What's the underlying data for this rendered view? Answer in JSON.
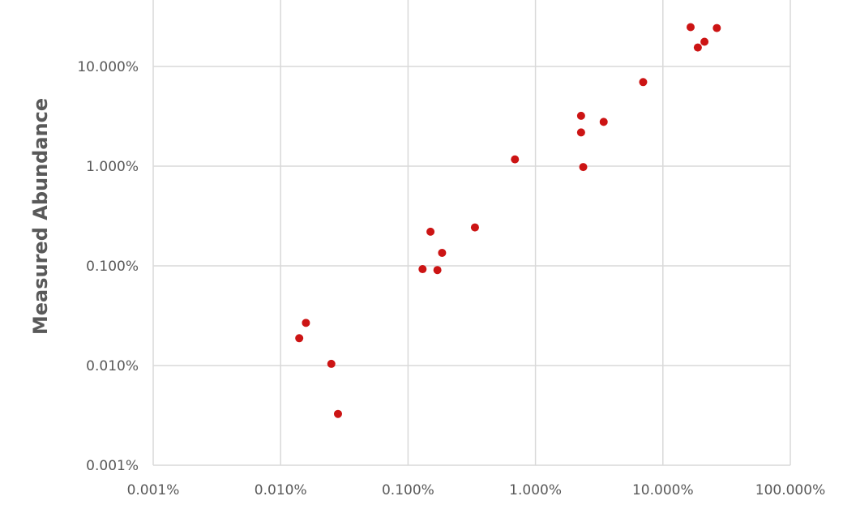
{
  "chart_data": {
    "type": "scatter",
    "title": "",
    "xlabel": "",
    "ylabel": "Measured Abundance",
    "x_scale": "log",
    "y_scale": "log",
    "xlim": [
      1e-05,
      1.0
    ],
    "ylim": [
      1e-05,
      0.3
    ],
    "x_ticks": [
      1e-05,
      0.0001,
      0.001,
      0.01,
      0.1,
      1.0
    ],
    "x_tick_labels": [
      "0.001%",
      "0.010%",
      "0.100%",
      "1.000%",
      "10.000%",
      "100.000%"
    ],
    "y_ticks": [
      1e-05,
      0.0001,
      0.001,
      0.01,
      0.1
    ],
    "y_tick_labels": [
      "0.001%",
      "0.010%",
      "0.100%",
      "1.000%",
      "10.000%"
    ],
    "grid": true,
    "legend": "none",
    "marker_color": "#cc1414",
    "points": [
      {
        "x": 0.00014,
        "y": 0.000188
      },
      {
        "x": 0.000158,
        "y": 0.000268
      },
      {
        "x": 0.00025,
        "y": 0.000104
      },
      {
        "x": 0.000282,
        "y": 3.27e-05
      },
      {
        "x": 0.0013,
        "y": 0.000927
      },
      {
        "x": 0.0015,
        "y": 0.0022
      },
      {
        "x": 0.0017,
        "y": 0.000907
      },
      {
        "x": 0.00185,
        "y": 0.00135
      },
      {
        "x": 0.00335,
        "y": 0.00243
      },
      {
        "x": 0.0069,
        "y": 0.0117
      },
      {
        "x": 0.0228,
        "y": 0.032
      },
      {
        "x": 0.0228,
        "y": 0.0218
      },
      {
        "x": 0.0237,
        "y": 0.0098
      },
      {
        "x": 0.0343,
        "y": 0.0278
      },
      {
        "x": 0.07,
        "y": 0.0697
      },
      {
        "x": 0.165,
        "y": 0.248
      },
      {
        "x": 0.188,
        "y": 0.155
      },
      {
        "x": 0.212,
        "y": 0.177
      },
      {
        "x": 0.265,
        "y": 0.243
      }
    ]
  }
}
